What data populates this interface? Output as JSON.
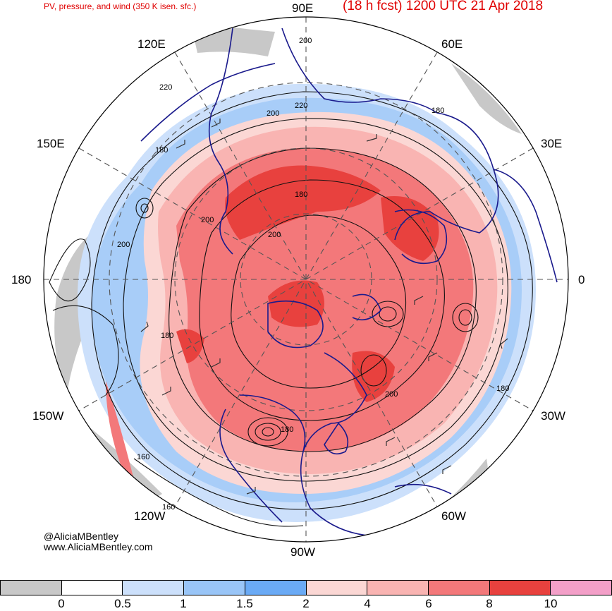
{
  "header": {
    "subtitle": "PV, pressure, and wind (350 K isen. sfc.)",
    "title": "(18 h fcst) 1200 UTC 21 Apr 2018"
  },
  "map": {
    "longitude_labels": {
      "n": "90E",
      "ne1": "60E",
      "ne2": "30E",
      "e": "0",
      "se1": "30W",
      "se2": "60W",
      "s": "90W",
      "sw1": "120W",
      "sw2": "150W",
      "w": "180",
      "nw1": "150E",
      "nw2": "120E"
    },
    "contour_labels": [
      "200",
      "220",
      "220",
      "200",
      "180",
      "180",
      "180",
      "200",
      "200",
      "200",
      "180",
      "200",
      "180",
      "180",
      "160",
      "160"
    ],
    "colors": {
      "pv_high": "#e8413e",
      "pv_mid": "#f3787a",
      "pv_low": "#f9b4b2",
      "pv_vlow": "#fbd7d4",
      "pv_blue1": "#cce0fb",
      "pv_blue2": "#99c5f7",
      "coast": "#1a1a8c"
    }
  },
  "credits": {
    "handle": "@AliciaMBentley",
    "site": "www.AliciaMBentley.com"
  },
  "colorbar": {
    "colors": [
      "#c8c8c8",
      "#ffffff",
      "#cce0fb",
      "#99c5f7",
      "#6aaaf5",
      "#fbd7d4",
      "#f9b4b2",
      "#f3787a",
      "#e8413e",
      "#f39fc8"
    ],
    "ticks": [
      "0",
      "0.5",
      "1",
      "1.5",
      "2",
      "4",
      "6",
      "8",
      "10"
    ]
  }
}
